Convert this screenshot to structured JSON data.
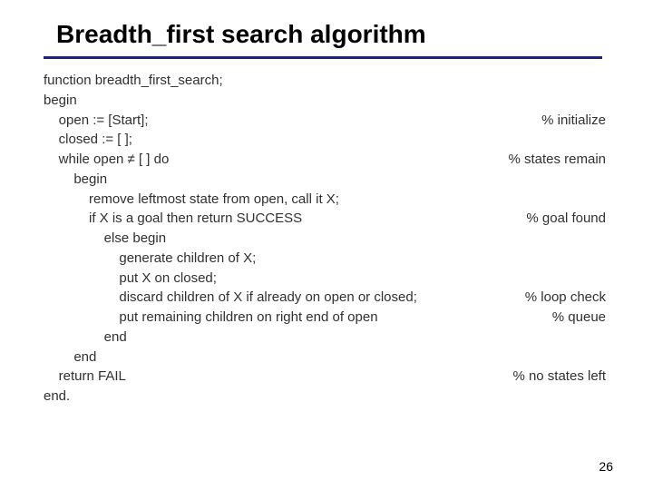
{
  "title": "Breadth_first search algorithm",
  "lines": [
    {
      "indent": 0,
      "text": "function breadth_first_search;",
      "comment": ""
    },
    {
      "indent": 0,
      "text": "",
      "comment": ""
    },
    {
      "indent": 0,
      "text": "begin",
      "comment": ""
    },
    {
      "indent": 1,
      "text": "open := [Start];",
      "comment": "% initialize"
    },
    {
      "indent": 1,
      "text": "closed := [ ];",
      "comment": ""
    },
    {
      "indent": 1,
      "text": "while open ≠ [ ] do",
      "comment": "% states remain"
    },
    {
      "indent": 2,
      "text": "begin",
      "comment": ""
    },
    {
      "indent": 3,
      "text": "remove leftmost state from open, call it X;",
      "comment": ""
    },
    {
      "indent": 3,
      "text": "if X is a goal then return SUCCESS",
      "comment": "% goal found"
    },
    {
      "indent": 4,
      "text": "else begin",
      "comment": ""
    },
    {
      "indent": 5,
      "text": "generate children of X;",
      "comment": ""
    },
    {
      "indent": 5,
      "text": "put X on closed;",
      "comment": ""
    },
    {
      "indent": 5,
      "text": "discard children of X if already on open or closed;",
      "comment": "% loop check"
    },
    {
      "indent": 5,
      "text": "put remaining children on right end of open",
      "comment": "% queue"
    },
    {
      "indent": 4,
      "text": "end",
      "comment": ""
    },
    {
      "indent": 2,
      "text": "end",
      "comment": ""
    },
    {
      "indent": 1,
      "text": "return FAIL",
      "comment": "% no states left"
    },
    {
      "indent": 0,
      "text": "end.",
      "comment": ""
    }
  ],
  "indent_unit": "    ",
  "colors": {
    "underline": "#202080",
    "text": "#303030",
    "title": "#000000",
    "background": "#ffffff"
  },
  "page_number": "26"
}
